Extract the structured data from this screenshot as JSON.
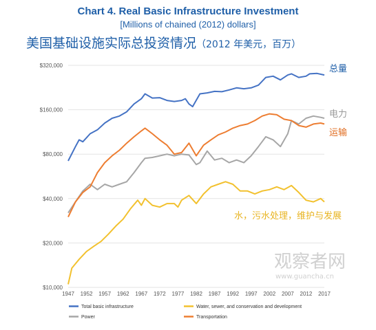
{
  "header": {
    "title": "Chart 4. Real Basic Infrastructure Investment",
    "subtitle": "[Millions of chained (2012) dollars]",
    "cn_title": "美国基础设施实际总投资情况",
    "cn_unit": "（2012 年美元，百万）"
  },
  "annotations": {
    "total": "总量",
    "power": "电力",
    "transport": "运输",
    "water": "水，污水处理，维护与发展"
  },
  "watermark": {
    "main": "观察者网",
    "url": "www.guancha.cn"
  },
  "colors": {
    "total": "#4472c4",
    "water": "#f2c12e",
    "power": "#a6a6a6",
    "transport": "#ed7d31"
  },
  "chart_data": {
    "type": "line",
    "yscale": "log",
    "ylim": [
      10000,
      320000
    ],
    "yticks": [
      10000,
      20000,
      40000,
      80000,
      160000,
      320000
    ],
    "ytick_labels": [
      "$10,000",
      "$20,000",
      "$40,000",
      "$80,000",
      "$160,000",
      "$320,000"
    ],
    "xlim": [
      1947,
      2017
    ],
    "xticks": [
      1947,
      1952,
      1957,
      1962,
      1967,
      1972,
      1977,
      1982,
      1987,
      1992,
      1997,
      2002,
      2007,
      2012,
      2017
    ],
    "legend_position": "bottom",
    "series": [
      {
        "key": "total",
        "name": "Total basic infrastructure",
        "points": [
          [
            1947,
            72000
          ],
          [
            1949,
            90000
          ],
          [
            1950,
            100000
          ],
          [
            1951,
            97000
          ],
          [
            1953,
            110000
          ],
          [
            1955,
            117000
          ],
          [
            1957,
            130000
          ],
          [
            1959,
            140000
          ],
          [
            1961,
            145000
          ],
          [
            1963,
            155000
          ],
          [
            1965,
            175000
          ],
          [
            1967,
            190000
          ],
          [
            1968,
            205000
          ],
          [
            1970,
            192000
          ],
          [
            1972,
            193000
          ],
          [
            1974,
            185000
          ],
          [
            1976,
            182000
          ],
          [
            1978,
            185000
          ],
          [
            1979,
            190000
          ],
          [
            1980,
            175000
          ],
          [
            1981,
            168000
          ],
          [
            1983,
            205000
          ],
          [
            1985,
            208000
          ],
          [
            1987,
            213000
          ],
          [
            1989,
            212000
          ],
          [
            1991,
            218000
          ],
          [
            1993,
            225000
          ],
          [
            1995,
            222000
          ],
          [
            1997,
            225000
          ],
          [
            1999,
            235000
          ],
          [
            2001,
            265000
          ],
          [
            2003,
            270000
          ],
          [
            2005,
            255000
          ],
          [
            2007,
            275000
          ],
          [
            2008,
            280000
          ],
          [
            2010,
            265000
          ],
          [
            2012,
            270000
          ],
          [
            2013,
            280000
          ],
          [
            2015,
            282000
          ],
          [
            2017,
            275000
          ]
        ]
      },
      {
        "key": "water",
        "name": "Water, sewer, and conservation and development",
        "points": [
          [
            1947,
            10500
          ],
          [
            1948,
            13500
          ],
          [
            1950,
            15500
          ],
          [
            1952,
            17500
          ],
          [
            1954,
            19000
          ],
          [
            1956,
            20500
          ],
          [
            1958,
            23000
          ],
          [
            1960,
            26000
          ],
          [
            1962,
            29000
          ],
          [
            1964,
            34000
          ],
          [
            1966,
            39000
          ],
          [
            1967,
            36000
          ],
          [
            1968,
            40000
          ],
          [
            1970,
            36000
          ],
          [
            1972,
            35000
          ],
          [
            1974,
            37000
          ],
          [
            1976,
            37000
          ],
          [
            1977,
            35000
          ],
          [
            1978,
            39000
          ],
          [
            1980,
            42000
          ],
          [
            1982,
            37000
          ],
          [
            1984,
            43000
          ],
          [
            1986,
            48000
          ],
          [
            1988,
            50000
          ],
          [
            1990,
            52000
          ],
          [
            1992,
            50000
          ],
          [
            1994,
            45000
          ],
          [
            1996,
            45000
          ],
          [
            1998,
            43000
          ],
          [
            2000,
            45000
          ],
          [
            2002,
            46000
          ],
          [
            2004,
            48000
          ],
          [
            2006,
            46000
          ],
          [
            2008,
            49000
          ],
          [
            2010,
            44000
          ],
          [
            2012,
            39000
          ],
          [
            2014,
            38000
          ],
          [
            2016,
            40000
          ],
          [
            2017,
            38000
          ]
        ]
      },
      {
        "key": "power",
        "name": "Power",
        "points": [
          [
            1947,
            32000
          ],
          [
            1949,
            38000
          ],
          [
            1951,
            45000
          ],
          [
            1953,
            50000
          ],
          [
            1955,
            46000
          ],
          [
            1957,
            50000
          ],
          [
            1959,
            48000
          ],
          [
            1961,
            50000
          ],
          [
            1963,
            52000
          ],
          [
            1965,
            60000
          ],
          [
            1967,
            70000
          ],
          [
            1968,
            75000
          ],
          [
            1970,
            76000
          ],
          [
            1972,
            78000
          ],
          [
            1974,
            80000
          ],
          [
            1976,
            78000
          ],
          [
            1978,
            80000
          ],
          [
            1980,
            79000
          ],
          [
            1982,
            68000
          ],
          [
            1983,
            70000
          ],
          [
            1985,
            84000
          ],
          [
            1987,
            73000
          ],
          [
            1989,
            75000
          ],
          [
            1991,
            70000
          ],
          [
            1993,
            73000
          ],
          [
            1995,
            70000
          ],
          [
            1997,
            78000
          ],
          [
            1999,
            90000
          ],
          [
            2001,
            105000
          ],
          [
            2003,
            100000
          ],
          [
            2005,
            90000
          ],
          [
            2007,
            110000
          ],
          [
            2008,
            135000
          ],
          [
            2010,
            128000
          ],
          [
            2012,
            140000
          ],
          [
            2014,
            145000
          ],
          [
            2016,
            142000
          ],
          [
            2017,
            140000
          ]
        ]
      },
      {
        "key": "transport",
        "name": "Transportation",
        "points": [
          [
            1947,
            30000
          ],
          [
            1949,
            38000
          ],
          [
            1951,
            44000
          ],
          [
            1953,
            48000
          ],
          [
            1955,
            60000
          ],
          [
            1957,
            70000
          ],
          [
            1959,
            78000
          ],
          [
            1961,
            85000
          ],
          [
            1963,
            95000
          ],
          [
            1965,
            105000
          ],
          [
            1967,
            115000
          ],
          [
            1968,
            120000
          ],
          [
            1970,
            110000
          ],
          [
            1972,
            100000
          ],
          [
            1974,
            92000
          ],
          [
            1976,
            80000
          ],
          [
            1978,
            82000
          ],
          [
            1980,
            95000
          ],
          [
            1982,
            78000
          ],
          [
            1984,
            92000
          ],
          [
            1986,
            100000
          ],
          [
            1988,
            108000
          ],
          [
            1990,
            113000
          ],
          [
            1992,
            120000
          ],
          [
            1994,
            125000
          ],
          [
            1996,
            128000
          ],
          [
            1998,
            135000
          ],
          [
            2000,
            145000
          ],
          [
            2002,
            150000
          ],
          [
            2004,
            148000
          ],
          [
            2006,
            138000
          ],
          [
            2008,
            135000
          ],
          [
            2010,
            125000
          ],
          [
            2012,
            122000
          ],
          [
            2014,
            128000
          ],
          [
            2016,
            130000
          ],
          [
            2017,
            128000
          ]
        ]
      }
    ]
  }
}
